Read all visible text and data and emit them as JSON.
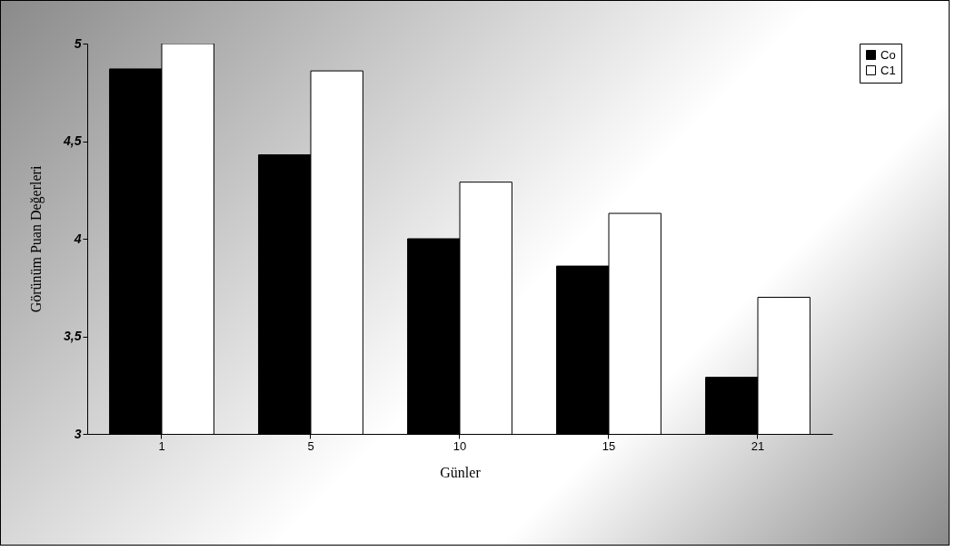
{
  "chart_data": {
    "type": "bar",
    "xlabel": "Günler",
    "ylabel": "Görünüm Puan Değerleri",
    "categories": [
      "1",
      "5",
      "10",
      "15",
      "21"
    ],
    "series": [
      {
        "name": "Co",
        "color": "#000000",
        "values": [
          4.87,
          4.43,
          4.0,
          3.86,
          3.29
        ]
      },
      {
        "name": "C1",
        "color": "#ffffff",
        "values": [
          5.0,
          4.86,
          4.29,
          4.13,
          3.7
        ]
      }
    ],
    "ylim": [
      3,
      5
    ],
    "yticks": [
      3,
      {
        "value": 3.5,
        "label": "3,5"
      },
      4,
      {
        "value": 4.5,
        "label": "4,5"
      },
      5
    ],
    "legend": "right"
  }
}
